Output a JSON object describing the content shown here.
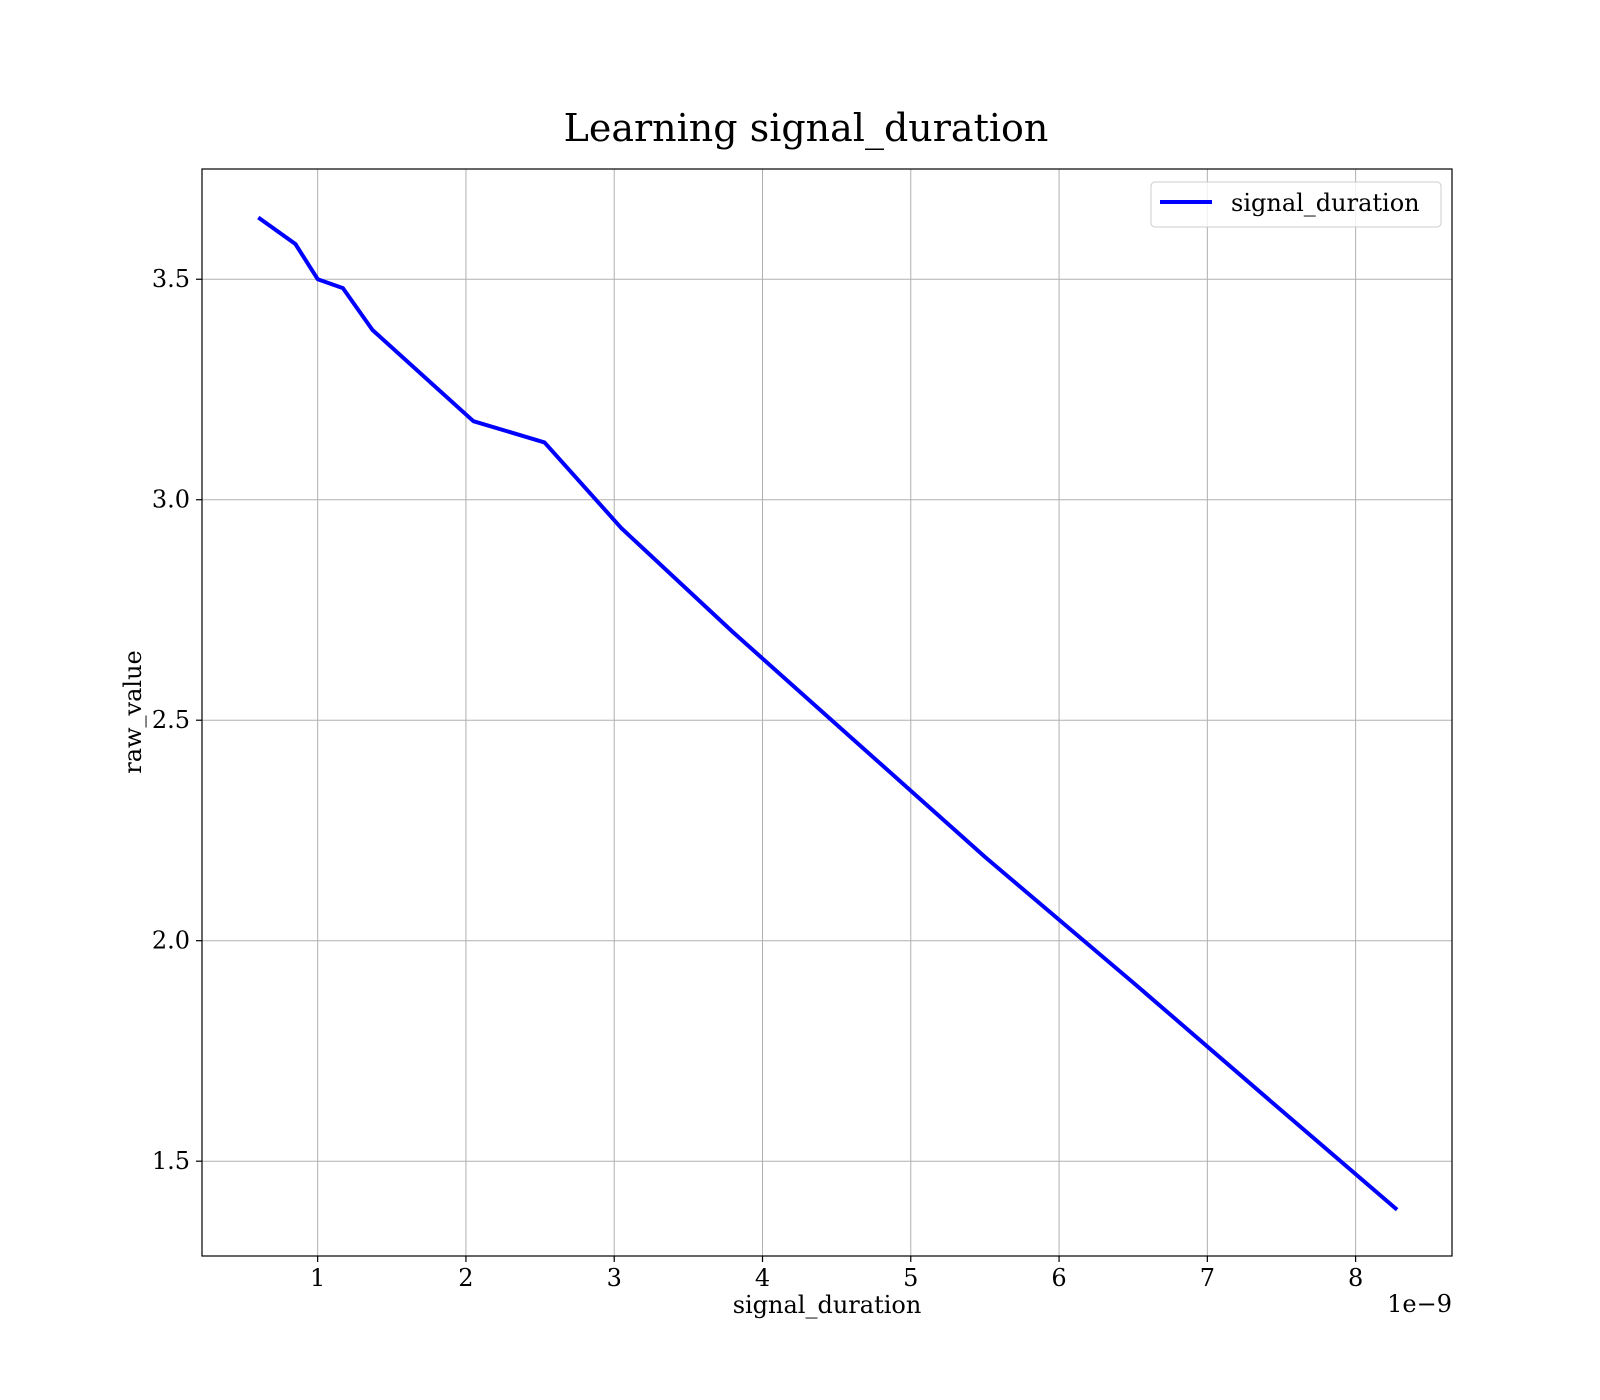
{
  "chart_data": {
    "type": "line",
    "title": "Learning signal_duration",
    "xlabel": "signal_duration",
    "ylabel": "raw_value",
    "x_offset_text": "1e−9",
    "x_tick_labels": [
      "1",
      "2",
      "3",
      "4",
      "5",
      "6",
      "7",
      "8"
    ],
    "x_ticks": [
      1,
      2,
      3,
      4,
      5,
      6,
      7,
      8
    ],
    "y_tick_labels": [
      "1.5",
      "2.0",
      "2.5",
      "3.0",
      "3.5"
    ],
    "y_ticks": [
      1.5,
      2.0,
      2.5,
      3.0,
      3.5
    ],
    "xlim": [
      0.22,
      8.65
    ],
    "ylim": [
      1.285,
      3.75
    ],
    "x_units": "1e-9",
    "grid": true,
    "legend_position": "top-right",
    "series": [
      {
        "name": "signal_duration",
        "color": "#0000ff",
        "x": [
          0.6,
          0.85,
          1.0,
          1.17,
          1.37,
          2.05,
          2.53,
          3.05,
          3.8,
          4.5,
          5.5,
          6.5,
          7.5,
          8.28
        ],
        "y": [
          3.64,
          3.58,
          3.5,
          3.48,
          3.385,
          3.178,
          3.13,
          2.935,
          2.7,
          2.49,
          2.19,
          1.905,
          1.615,
          1.39
        ]
      }
    ]
  }
}
